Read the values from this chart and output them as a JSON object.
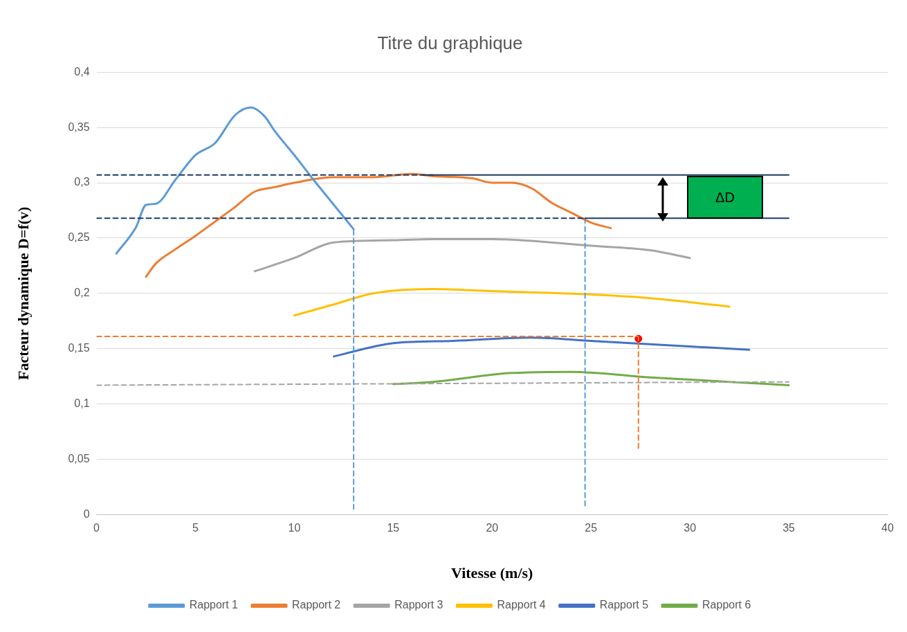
{
  "chart_data": {
    "type": "line",
    "title": "Titre du graphique",
    "xlabel": "Vitesse (m/s)",
    "ylabel": "Facteur dynamique D=f(v)",
    "xlim": [
      0,
      40
    ],
    "xticks": [
      0,
      5,
      10,
      15,
      20,
      25,
      30,
      35,
      40
    ],
    "ylim": [
      0,
      0.4
    ],
    "yticks": [
      0,
      {
        "value": 0.05,
        "label": "0,05"
      },
      {
        "value": 0.1,
        "label": "0,1"
      },
      {
        "value": 0.15,
        "label": "0,15"
      },
      {
        "value": 0.2,
        "label": "0,2"
      },
      {
        "value": 0.25,
        "label": "0,25"
      },
      {
        "value": 0.3,
        "label": "0,3"
      },
      {
        "value": 0.35,
        "label": "0,35"
      },
      {
        "value": 0.4,
        "label": "0,4"
      }
    ],
    "grid": "y",
    "legend": "bottom",
    "marker": "none",
    "line_style": "solid",
    "annotations": [
      "ΔD"
    ],
    "series": [
      {
        "name": "Rapport 1",
        "color": "#5b9bd5",
        "x": [
          1,
          2,
          2.5,
          3,
          4,
          5,
          6,
          7,
          7.8,
          8.5,
          9,
          10,
          11,
          12,
          13
        ],
        "values": [
          0.236,
          0.26,
          0.28,
          0.281,
          0.303,
          0.325,
          0.336,
          0.361,
          0.368,
          0.36,
          0.347,
          0.325,
          0.302,
          0.28,
          0.258
        ]
      },
      {
        "name": "Rapport 2",
        "color": "#ed7d31",
        "x": [
          2.5,
          3,
          4,
          5,
          6,
          7,
          8,
          9,
          10,
          12,
          14,
          16,
          17,
          19,
          20,
          21,
          22,
          23,
          24,
          25,
          26
        ],
        "values": [
          0.215,
          0.227,
          0.24,
          0.252,
          0.265,
          0.278,
          0.292,
          0.296,
          0.3,
          0.305,
          0.305,
          0.308,
          0.306,
          0.304,
          0.3,
          0.3,
          0.295,
          0.282,
          0.273,
          0.264,
          0.259
        ]
      },
      {
        "name": "Rapport 3",
        "color": "#a5a5a5",
        "x": [
          8,
          10,
          12,
          15,
          17,
          20,
          25,
          28,
          30
        ],
        "values": [
          0.22,
          0.232,
          0.246,
          0.248,
          0.249,
          0.249,
          0.243,
          0.239,
          0.232
        ]
      },
      {
        "name": "Rapport 4",
        "color": "#ffc000",
        "x": [
          10,
          12,
          14,
          17,
          20,
          25,
          27,
          30,
          32
        ],
        "values": [
          0.18,
          0.19,
          0.2,
          0.204,
          0.202,
          0.199,
          0.197,
          0.192,
          0.188
        ]
      },
      {
        "name": "Rapport 5",
        "color": "#4472c4",
        "x": [
          12,
          15,
          18,
          22,
          25,
          30,
          33
        ],
        "values": [
          0.143,
          0.155,
          0.157,
          0.16,
          0.157,
          0.152,
          0.149
        ]
      },
      {
        "name": "Rapport 6",
        "color": "#70ad47",
        "x": [
          15,
          17,
          21,
          24,
          28,
          32,
          35
        ],
        "values": [
          0.118,
          0.12,
          0.128,
          0.129,
          0.124,
          0.12,
          0.117
        ]
      },
      {
        "color": "#1f3864",
        "line_style": "dashed",
        "x": [
          0,
          17
        ],
        "values": [
          0.307,
          0.307
        ]
      },
      {
        "color": "#1f3864",
        "line_style": "dashed",
        "x": [
          0,
          24.7
        ],
        "values": [
          0.268,
          0.268
        ]
      },
      {
        "color": "#1f3864",
        "x": [
          16.5,
          35
        ],
        "values": [
          0.307,
          0.307
        ]
      },
      {
        "color": "#1f3864",
        "x": [
          24.7,
          35
        ],
        "values": [
          0.268,
          0.268
        ]
      },
      {
        "color": "#5b9bd5",
        "line_style": "dashed",
        "x": [
          13,
          13
        ],
        "values": [
          0.005,
          0.258
        ]
      },
      {
        "color": "#5b9bd5",
        "line_style": "dashed",
        "x": [
          24.7,
          24.7
        ],
        "values": [
          0.008,
          0.268
        ]
      },
      {
        "color": "#ed7d31",
        "line_style": "dashed",
        "x": [
          0,
          27.4
        ],
        "values": [
          0.161,
          0.161
        ]
      },
      {
        "color": "#ed7d31",
        "line_style": "dashed",
        "x": [
          27.4,
          27.4
        ],
        "values": [
          0.06,
          0.16
        ]
      },
      {
        "color": "#a5a5a5",
        "line_style": "dashed",
        "x": [
          0,
          35
        ],
        "values": [
          0.117,
          0.12
        ]
      },
      {
        "type": "scatter",
        "marker": "circle",
        "color": "#ff0000",
        "x": [
          27.4
        ],
        "values": [
          0.159
        ]
      }
    ]
  }
}
